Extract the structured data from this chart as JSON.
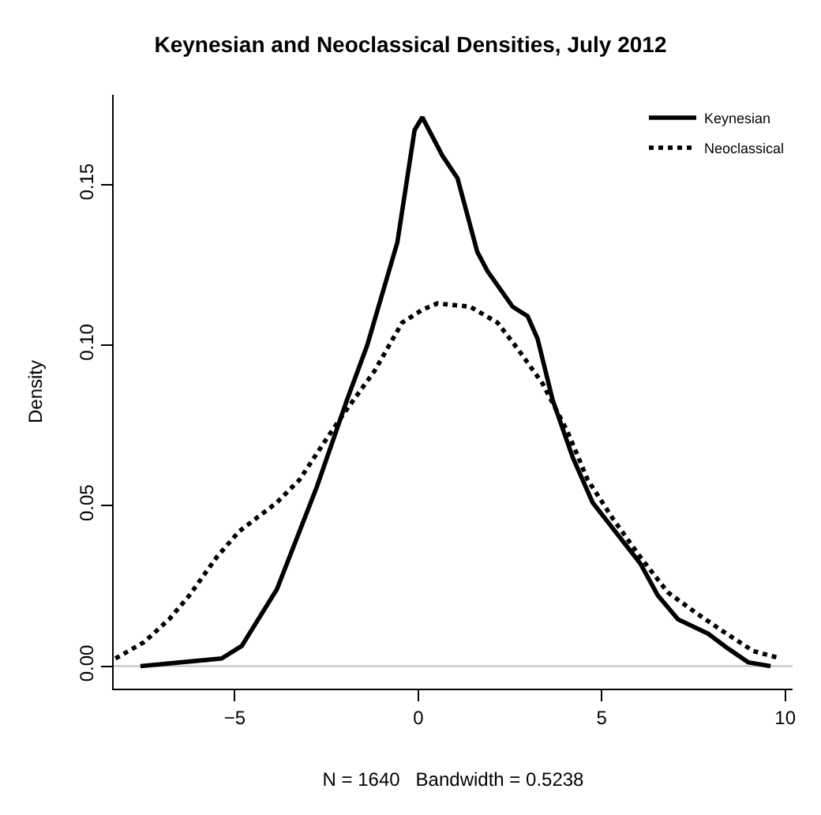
{
  "chart_data": {
    "type": "line",
    "title": "Keynesian and Neoclassical Densities, July 2012",
    "xlabel": "N = 1640   Bandwidth = 0.5238",
    "ylabel": "Density",
    "xlim": [
      -8.3,
      10.2
    ],
    "xticks": [
      {
        "value": -5,
        "label": "−5"
      },
      0,
      5,
      10
    ],
    "ylim": [
      -0.007,
      0.178
    ],
    "yticks": [
      {
        "value": 0,
        "label": "0.00"
      },
      0.05,
      {
        "value": 0.1,
        "label": "0.10"
      },
      0.15
    ],
    "grid": false,
    "legend": "top right",
    "marker": "none",
    "ref_lines": [
      {
        "axis": "y",
        "value": 0,
        "label": null,
        "color": "#bebebe"
      }
    ],
    "series": [
      {
        "name": "Keynesian",
        "color": "#000000",
        "line_style": "solid",
        "x": [
          -7.57,
          -5.36,
          -4.81,
          -3.85,
          -2.76,
          -1.94,
          -1.39,
          -0.57,
          -0.1,
          0.11,
          0.66,
          1.07,
          1.61,
          1.89,
          2.57,
          2.98,
          3.25,
          3.66,
          4.21,
          4.75,
          5.57,
          6.05,
          6.53,
          7.08,
          7.9,
          8.44,
          8.99,
          9.6
        ],
        "values": [
          0,
          0.0024,
          0.0063,
          0.024,
          0.056,
          0.083,
          0.1,
          0.132,
          0.167,
          0.171,
          0.159,
          0.152,
          0.129,
          0.123,
          0.112,
          0.109,
          0.102,
          0.083,
          0.065,
          0.051,
          0.039,
          0.032,
          0.022,
          0.0146,
          0.0101,
          0.0055,
          0.0012,
          0
        ]
      },
      {
        "name": "Neoclassical",
        "color": "#000000",
        "line_style": "dotted",
        "x": [
          -8.25,
          -7.47,
          -6.79,
          -6.24,
          -5.49,
          -4.88,
          -3.85,
          -3.24,
          -2.49,
          -2.01,
          -1.19,
          -0.44,
          0.11,
          0.52,
          1.41,
          2.16,
          2.7,
          3.39,
          4.07,
          4.62,
          5.3,
          6.05,
          6.8,
          7.62,
          8.31,
          9.13,
          9.88
        ],
        "values": [
          0.0024,
          0.0075,
          0.0146,
          0.022,
          0.034,
          0.042,
          0.051,
          0.058,
          0.071,
          0.079,
          0.092,
          0.107,
          0.111,
          0.113,
          0.112,
          0.107,
          0.099,
          0.088,
          0.073,
          0.058,
          0.046,
          0.034,
          0.023,
          0.0162,
          0.0108,
          0.0047,
          0.0024
        ]
      }
    ]
  }
}
